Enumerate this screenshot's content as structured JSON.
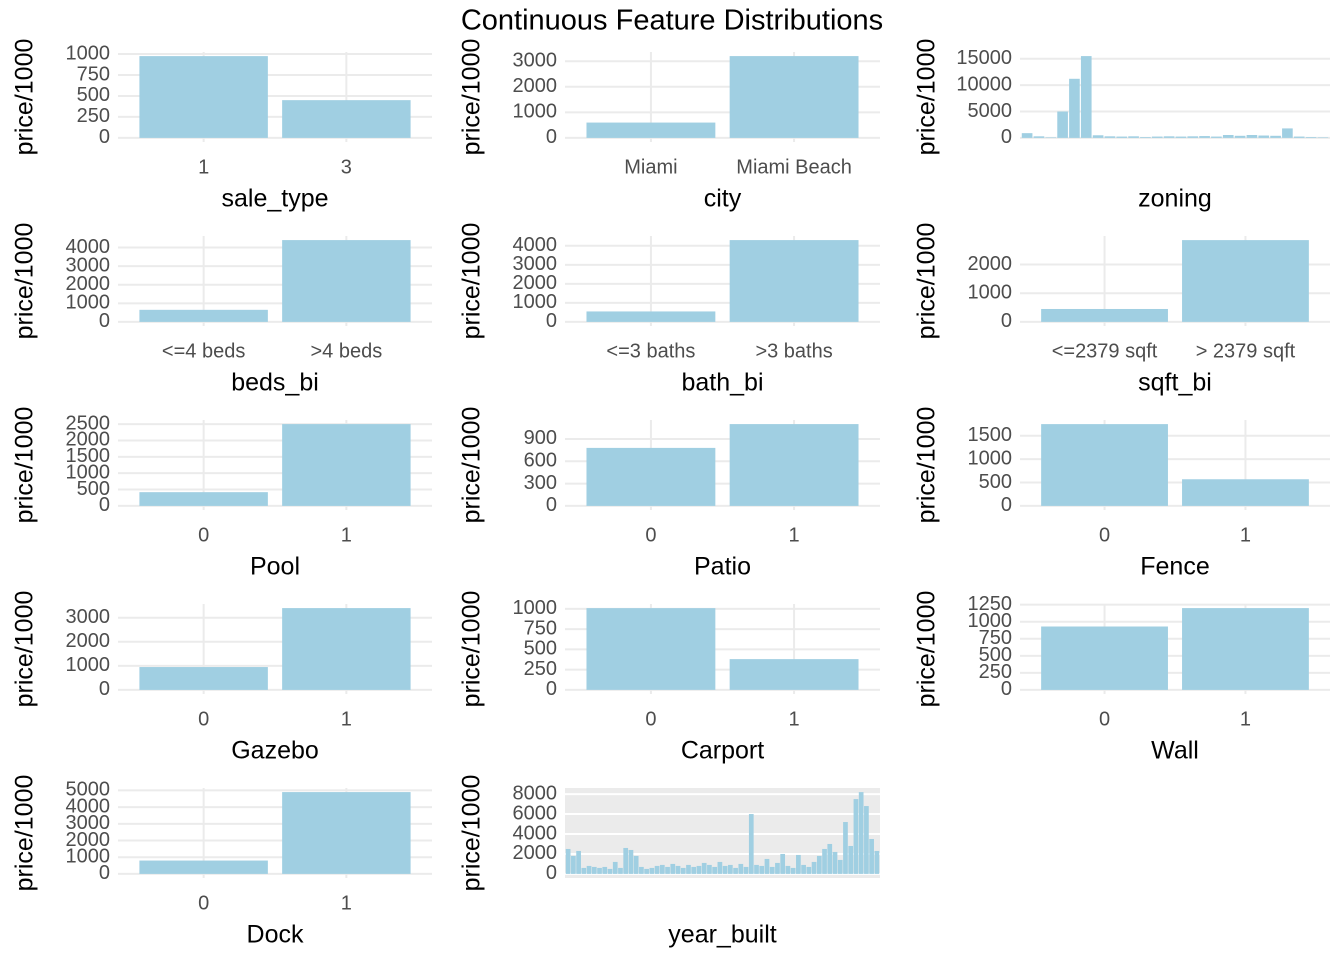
{
  "title": "Continuous Feature Distributions",
  "chart_data": [
    {
      "type": "bar",
      "xlabel": "sale_type",
      "ylabel": "price/1000",
      "categories": [
        "1",
        "3"
      ],
      "values": [
        975,
        450
      ],
      "ylim": [
        -49,
        1024
      ],
      "yticks": [
        0,
        250,
        500,
        750,
        1000
      ],
      "color": "#a0cfe2",
      "grid": true
    },
    {
      "type": "bar",
      "xlabel": "city",
      "ylabel": "price/1000",
      "categories": [
        "Miami",
        "Miami Beach"
      ],
      "values": [
        600,
        3200
      ],
      "ylim": [
        -160,
        3360
      ],
      "yticks": [
        0,
        1000,
        2000,
        3000
      ],
      "color": "#a0cfe2",
      "grid": true
    },
    {
      "type": "bar",
      "xlabel": "zoning",
      "ylabel": "price/1000",
      "categories": [
        null,
        null,
        null,
        null,
        null,
        null,
        null,
        null,
        null,
        null,
        null,
        null,
        null,
        null,
        null,
        null,
        null,
        null,
        null,
        null,
        null,
        null,
        null,
        null,
        null,
        null
      ],
      "values": [
        900,
        300,
        100,
        5000,
        11200,
        15500,
        500,
        300,
        250,
        300,
        150,
        250,
        300,
        250,
        300,
        350,
        250,
        550,
        400,
        550,
        450,
        400,
        1800,
        250,
        150,
        100
      ],
      "ylim": [
        -775,
        16275
      ],
      "yticks": [
        0,
        5000,
        10000,
        15000
      ],
      "color": "#a0cfe2",
      "grid": true
    },
    {
      "type": "bar",
      "xlabel": "beds_bi",
      "ylabel": "price/1000",
      "categories": [
        "<=4 beds",
        ">4 beds"
      ],
      "values": [
        650,
        4400
      ],
      "ylim": [
        -220,
        4620
      ],
      "yticks": [
        0,
        1000,
        2000,
        3000,
        4000
      ],
      "color": "#a0cfe2",
      "grid": true
    },
    {
      "type": "bar",
      "xlabel": "bath_bi",
      "ylabel": "price/1000",
      "categories": [
        "<=3 baths",
        ">3 baths"
      ],
      "values": [
        550,
        4300
      ],
      "ylim": [
        -215,
        4515
      ],
      "yticks": [
        0,
        1000,
        2000,
        3000,
        4000
      ],
      "color": "#a0cfe2",
      "grid": true
    },
    {
      "type": "bar",
      "xlabel": "sqft_bi",
      "ylabel": "price/1000",
      "categories": [
        "<=2379 sqft",
        "> 2379 sqft"
      ],
      "values": [
        450,
        2850
      ],
      "ylim": [
        -143,
        2993
      ],
      "yticks": [
        0,
        1000,
        2000
      ],
      "color": "#a0cfe2",
      "grid": true
    },
    {
      "type": "bar",
      "xlabel": "Pool",
      "ylabel": "price/1000",
      "categories": [
        "0",
        "1"
      ],
      "values": [
        420,
        2500
      ],
      "ylim": [
        -125,
        2625
      ],
      "yticks": [
        0,
        500,
        1000,
        1500,
        2000,
        2500
      ],
      "color": "#a0cfe2",
      "grid": true
    },
    {
      "type": "bar",
      "xlabel": "Patio",
      "ylabel": "price/1000",
      "categories": [
        "0",
        "1"
      ],
      "values": [
        780,
        1100
      ],
      "ylim": [
        -55,
        1155
      ],
      "yticks": [
        0,
        300,
        600,
        900
      ],
      "color": "#a0cfe2",
      "grid": true
    },
    {
      "type": "bar",
      "xlabel": "Fence",
      "ylabel": "price/1000",
      "categories": [
        "0",
        "1"
      ],
      "values": [
        1750,
        570
      ],
      "ylim": [
        -88,
        1838
      ],
      "yticks": [
        0,
        500,
        1000,
        1500
      ],
      "color": "#a0cfe2",
      "grid": true
    },
    {
      "type": "bar",
      "xlabel": "Gazebo",
      "ylabel": "price/1000",
      "categories": [
        "0",
        "1"
      ],
      "values": [
        950,
        3400
      ],
      "ylim": [
        -170,
        3570
      ],
      "yticks": [
        0,
        1000,
        2000,
        3000
      ],
      "color": "#a0cfe2",
      "grid": true
    },
    {
      "type": "bar",
      "xlabel": "Carport",
      "ylabel": "price/1000",
      "categories": [
        "0",
        "1"
      ],
      "values": [
        1010,
        380
      ],
      "ylim": [
        -51,
        1061
      ],
      "yticks": [
        0,
        250,
        500,
        750,
        1000
      ],
      "color": "#a0cfe2",
      "grid": true
    },
    {
      "type": "bar",
      "xlabel": "Wall",
      "ylabel": "price/1000",
      "categories": [
        "0",
        "1"
      ],
      "values": [
        930,
        1200
      ],
      "ylim": [
        -60,
        1260
      ],
      "yticks": [
        0,
        250,
        500,
        750,
        1000,
        1250
      ],
      "color": "#a0cfe2",
      "grid": true
    },
    {
      "type": "bar",
      "xlabel": "Dock",
      "ylabel": "price/1000",
      "categories": [
        "0",
        "1"
      ],
      "values": [
        800,
        4900
      ],
      "ylim": [
        -245,
        5145
      ],
      "yticks": [
        0,
        1000,
        2000,
        3000,
        4000,
        5000
      ],
      "color": "#a0cfe2",
      "grid": true
    },
    {
      "type": "bar",
      "xlabel": "year_built",
      "ylabel": "price/1000",
      "categories": [
        null,
        null,
        null,
        null,
        null,
        null,
        null,
        null,
        null,
        null,
        null,
        null,
        null,
        null,
        null,
        null,
        null,
        null,
        null,
        null,
        null,
        null,
        null,
        null,
        null,
        null,
        null,
        null,
        null,
        null,
        null,
        null,
        null,
        null,
        null,
        null,
        null,
        null,
        null,
        null,
        null,
        null,
        null,
        null,
        null,
        null,
        null,
        null,
        null,
        null,
        null,
        null,
        null,
        null,
        null,
        null,
        null,
        null,
        null,
        null
      ],
      "values": [
        2500,
        1800,
        2300,
        600,
        800,
        700,
        600,
        700,
        500,
        1200,
        600,
        2600,
        2400,
        1800,
        700,
        500,
        600,
        800,
        900,
        700,
        1000,
        800,
        600,
        900,
        700,
        800,
        1100,
        900,
        700,
        1200,
        800,
        900,
        600,
        1000,
        700,
        6000,
        900,
        800,
        1500,
        700,
        1100,
        2000,
        800,
        600,
        1900,
        900,
        700,
        1200,
        1800,
        2500,
        3000,
        2200,
        1400,
        5200,
        2800,
        7500,
        8200,
        6800,
        3500,
        2300
      ],
      "ylim": [
        -410,
        8610
      ],
      "yticks": [
        0,
        2000,
        4000,
        6000,
        8000
      ],
      "color": "#a0cfe2",
      "grid": true,
      "background": "#ebebeb"
    }
  ]
}
